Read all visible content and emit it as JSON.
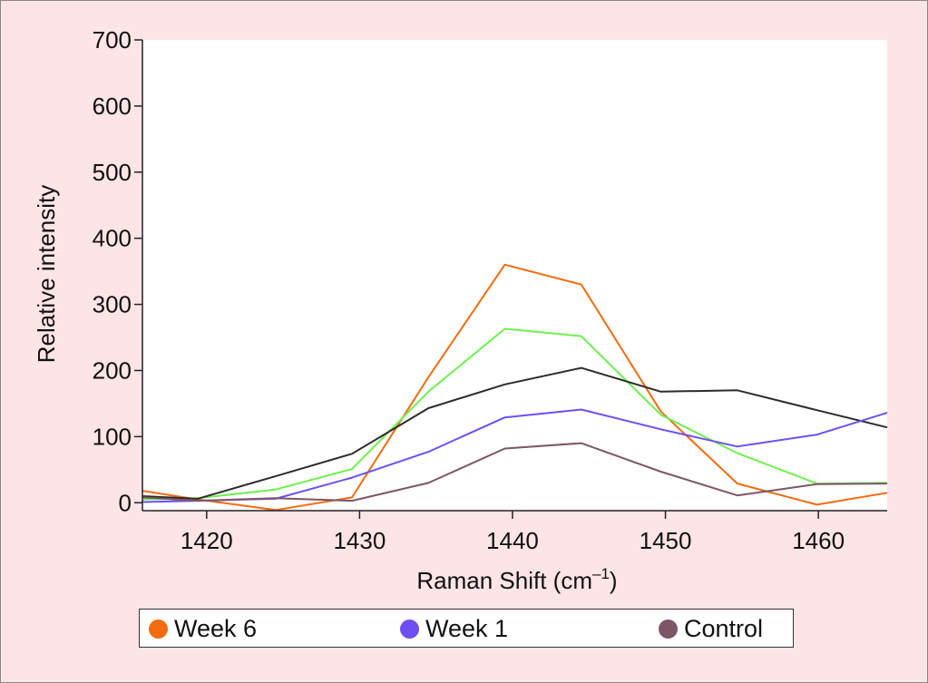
{
  "chart_data": {
    "type": "line",
    "title": "",
    "xlabel": "Raman Shift (cm",
    "xlabel_sup": "–1",
    "xlabel_close": ")",
    "ylabel": "Relative intensity",
    "xlim": [
      1415.8,
      1464.5
    ],
    "ylim": [
      -12,
      700
    ],
    "xticks": [
      1420,
      1430,
      1440,
      1450,
      1460
    ],
    "yticks": [
      0,
      100,
      200,
      300,
      400,
      500,
      600,
      700
    ],
    "grid": false,
    "legend_position": "bottom",
    "series": [
      {
        "name": "Week 6",
        "color": "#f26b0f",
        "in_legend": true,
        "x": [
          1415.8,
          1419.4,
          1424.5,
          1429.5,
          1434.5,
          1439.5,
          1444.5,
          1449.7,
          1454.7,
          1459.9,
          1464.5
        ],
        "y": [
          18,
          5,
          -11,
          8,
          190,
          360,
          330,
          138,
          29,
          -3,
          15
        ]
      },
      {
        "name": "",
        "color": "#6ef04f",
        "in_legend": false,
        "x": [
          1415.8,
          1419.4,
          1424.5,
          1429.5,
          1434.5,
          1439.5,
          1444.5,
          1449.7,
          1454.7,
          1459.9,
          1464.5
        ],
        "y": [
          5,
          7,
          20,
          51,
          168,
          263,
          252,
          133,
          75,
          29,
          30
        ]
      },
      {
        "name": "",
        "color": "#2b2b2b",
        "in_legend": false,
        "x": [
          1415.8,
          1419.4,
          1424.5,
          1429.5,
          1434.5,
          1439.5,
          1444.5,
          1449.7,
          1454.7,
          1459.9,
          1464.5
        ],
        "y": [
          10,
          6,
          40,
          74,
          143,
          179,
          204,
          168,
          170,
          140,
          114
        ]
      },
      {
        "name": "Week 1",
        "color": "#6f4ff2",
        "in_legend": true,
        "x": [
          1415.8,
          1419.4,
          1424.5,
          1429.5,
          1434.5,
          1439.5,
          1444.5,
          1449.7,
          1454.7,
          1459.9,
          1464.5
        ],
        "y": [
          1,
          3,
          6,
          38,
          77,
          129,
          141,
          111,
          85,
          103,
          136
        ]
      },
      {
        "name": "Control",
        "color": "#7d5566",
        "in_legend": true,
        "x": [
          1415.8,
          1419.4,
          1424.5,
          1429.5,
          1434.5,
          1439.5,
          1444.5,
          1449.7,
          1454.7,
          1459.9,
          1464.5
        ],
        "y": [
          8,
          3,
          7,
          3,
          30,
          82,
          90,
          47,
          11,
          28,
          29
        ]
      }
    ]
  }
}
